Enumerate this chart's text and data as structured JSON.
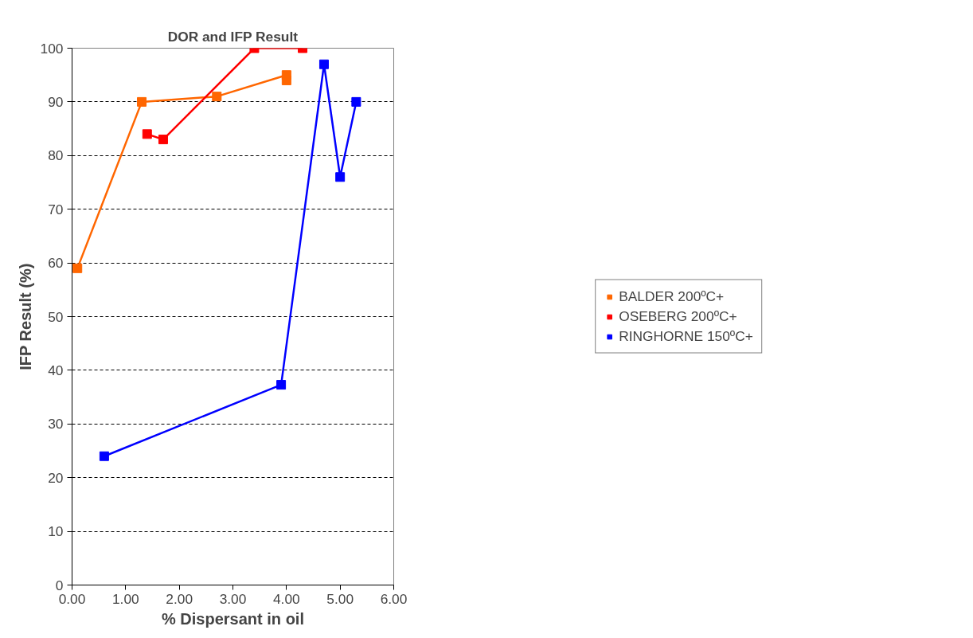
{
  "chart_data": {
    "type": "line",
    "title": "DOR and IFP Result",
    "xlabel": "% Dispersant in oil",
    "ylabel": "IFP Result (%)",
    "xlim": [
      0,
      6
    ],
    "xticks": [
      {
        "value": 0,
        "label": "0.00"
      },
      {
        "value": 1,
        "label": "1.00"
      },
      {
        "value": 2,
        "label": "2.00"
      },
      {
        "value": 3,
        "label": "3.00"
      },
      {
        "value": 4,
        "label": "4.00"
      },
      {
        "value": 5,
        "label": "5.00"
      },
      {
        "value": 6,
        "label": "6.00"
      }
    ],
    "ylim": [
      0,
      100
    ],
    "yticks": [
      0,
      10,
      20,
      30,
      40,
      50,
      60,
      70,
      80,
      90,
      100
    ],
    "grid": "y",
    "legend": "right",
    "marker": "square",
    "line_style": "solid",
    "series": [
      {
        "name": "BALDER 200ºC+",
        "color": "#ff6600",
        "x": [
          0.1,
          1.3,
          2.7,
          4.0,
          4.0
        ],
        "values": [
          59,
          90,
          91,
          95,
          94
        ]
      },
      {
        "name": "OSEBERG 200ºC+",
        "color": "#ff0000",
        "x": [
          1.4,
          1.7,
          3.4,
          4.3
        ],
        "values": [
          84,
          83,
          100,
          100
        ]
      },
      {
        "name": "RINGHORNE 150ºC+",
        "color": "#0000ff",
        "x": [
          0.6,
          3.9,
          4.7,
          5.0,
          5.3
        ],
        "values": [
          24,
          37.3,
          97,
          76,
          90
        ]
      }
    ]
  }
}
